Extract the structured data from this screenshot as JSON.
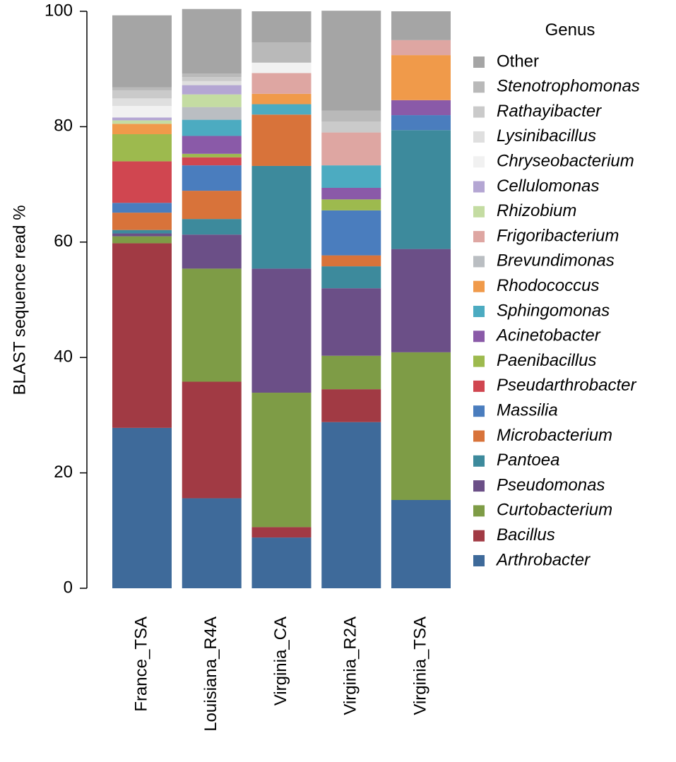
{
  "chart_data": {
    "type": "bar",
    "stacked": true,
    "title": "",
    "xlabel": "",
    "ylabel": "BLAST sequence read %",
    "ylim": [
      0,
      100
    ],
    "yticks": [
      0,
      20,
      40,
      60,
      80,
      100
    ],
    "legend_title": "Genus",
    "legend_position": "right",
    "categories": [
      "France_TSA",
      "Louisiana_R4A",
      "Virginia_CA",
      "Virginia_R2A",
      "Virginia_TSA"
    ],
    "series": [
      {
        "name": "Arthrobacter",
        "color": "#3E6A9A",
        "values": [
          27.8,
          15.6,
          8.8,
          28.8,
          15.3
        ]
      },
      {
        "name": "Bacillus",
        "color": "#A13A44",
        "values": [
          32.0,
          20.2,
          1.8,
          5.7,
          0.0
        ]
      },
      {
        "name": "Curtobacterium",
        "color": "#7E9C46",
        "values": [
          1.2,
          19.6,
          23.3,
          5.8,
          25.6
        ]
      },
      {
        "name": "Pseudomonas",
        "color": "#6B4F87",
        "values": [
          0.5,
          5.9,
          21.5,
          11.7,
          17.9
        ]
      },
      {
        "name": "Pantoea",
        "color": "#3D8A9C",
        "values": [
          0.6,
          2.7,
          17.8,
          3.8,
          20.6
        ]
      },
      {
        "name": "Microbacterium",
        "color": "#D8733A",
        "values": [
          3.0,
          4.9,
          8.9,
          1.9,
          0.0
        ]
      },
      {
        "name": "Massilia",
        "color": "#4A7DBE",
        "values": [
          1.7,
          4.4,
          0.0,
          7.8,
          2.6
        ]
      },
      {
        "name": "Pseudarthrobacter",
        "color": "#D04650",
        "values": [
          7.2,
          1.4,
          0.0,
          0.0,
          0.0
        ]
      },
      {
        "name": "Paenibacillus",
        "color": "#9DBA4E",
        "values": [
          4.7,
          0.6,
          0.0,
          1.9,
          0.0
        ]
      },
      {
        "name": "Acinetobacter",
        "color": "#8A5AA8",
        "values": [
          0.0,
          3.1,
          0.0,
          2.0,
          2.6
        ]
      },
      {
        "name": "Sphingomonas",
        "color": "#4CABC1",
        "values": [
          0.0,
          2.8,
          1.8,
          3.9,
          0.0
        ]
      },
      {
        "name": "Rhodococcus",
        "color": "#F09A4A",
        "values": [
          1.8,
          0.0,
          1.8,
          0.0,
          7.8
        ]
      },
      {
        "name": "Brevundimonas",
        "color": "#BABEC2",
        "values": [
          0.0,
          2.2,
          0.0,
          0.0,
          0.0
        ]
      },
      {
        "name": "Frigoribacterium",
        "color": "#DEA6A2",
        "values": [
          0.0,
          0.0,
          3.6,
          5.7,
          2.6
        ]
      },
      {
        "name": "Rhizobium",
        "color": "#C4DCA2",
        "values": [
          0.6,
          2.2,
          0.0,
          0.0,
          0.0
        ]
      },
      {
        "name": "Cellulomonas",
        "color": "#B4A6D3",
        "values": [
          0.5,
          1.6,
          0.0,
          0.0,
          0.0
        ]
      },
      {
        "name": "Chryseobacterium",
        "color": "#F1F1F1",
        "values": [
          2.0,
          0.0,
          1.8,
          0.0,
          0.0
        ]
      },
      {
        "name": "Lysinibacillus",
        "color": "#DFDFDF",
        "values": [
          1.3,
          0.7,
          0.0,
          0.0,
          0.0
        ]
      },
      {
        "name": "Rathayibacter",
        "color": "#CACACA",
        "values": [
          1.4,
          0.7,
          0.0,
          1.9,
          0.0
        ]
      },
      {
        "name": "Stenotrophomonas",
        "color": "#B9B9B9",
        "values": [
          0.5,
          0.6,
          3.5,
          1.9,
          0.0
        ]
      },
      {
        "name": "Other",
        "color": "#A5A5A5",
        "values": [
          12.5,
          11.2,
          5.4,
          17.3,
          5.0
        ]
      }
    ],
    "legend_order": [
      "Other",
      "Stenotrophomonas",
      "Rathayibacter",
      "Lysinibacillus",
      "Chryseobacterium",
      "Cellulomonas",
      "Rhizobium",
      "Frigoribacterium",
      "Brevundimonas",
      "Rhodococcus",
      "Sphingomonas",
      "Acinetobacter",
      "Paenibacillus",
      "Pseudarthrobacter",
      "Massilia",
      "Microbacterium",
      "Pantoea",
      "Pseudomonas",
      "Curtobacterium",
      "Bacillus",
      "Arthrobacter"
    ],
    "legend_italic": {
      "Other": false
    }
  }
}
